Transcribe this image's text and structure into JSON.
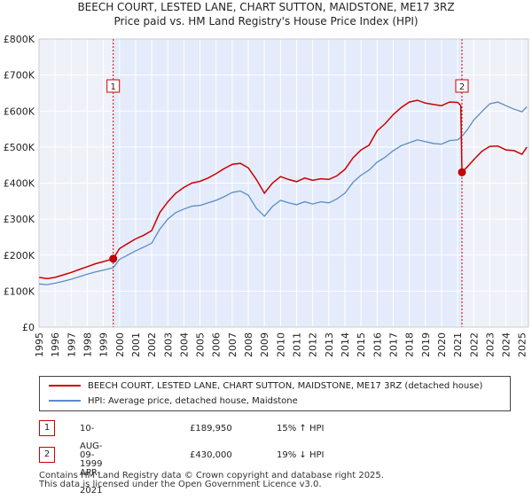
{
  "header": {
    "title": "BEECH COURT, LESTED LANE, CHART SUTTON, MAIDSTONE, ME17 3RZ",
    "subtitle": "Price paid vs. HM Land Registry's House Price Index (HPI)"
  },
  "chart_data": {
    "type": "line",
    "title": "BEECH COURT, LESTED LANE, CHART SUTTON, MAIDSTONE, ME17 3RZ",
    "subtitle": "Price paid vs. HM Land Registry's House Price Index (HPI)",
    "xlabel": "",
    "ylabel": "",
    "xlim": [
      1995,
      2025.4
    ],
    "ylim": [
      0,
      800000
    ],
    "grid": true,
    "x_ticks": [
      1995,
      1996,
      1997,
      1998,
      1999,
      2000,
      2001,
      2002,
      2003,
      2004,
      2005,
      2006,
      2007,
      2008,
      2009,
      2010,
      2011,
      2012,
      2013,
      2014,
      2015,
      2016,
      2017,
      2018,
      2019,
      2020,
      2021,
      2022,
      2023,
      2024,
      2025
    ],
    "y_ticks": [
      0,
      100000,
      200000,
      300000,
      400000,
      500000,
      600000,
      700000,
      800000
    ],
    "y_tick_labels": [
      "£0",
      "£100K",
      "£200K",
      "£300K",
      "£400K",
      "£500K",
      "£600K",
      "£700K",
      "£800K"
    ],
    "shaded_range": [
      1999.61,
      2021.27
    ],
    "series": [
      {
        "name": "BEECH COURT, LESTED LANE, CHART SUTTON, MAIDSTONE, ME17 3RZ (detached house)",
        "color": "#cc0000",
        "x": [
          1995.0,
          1995.5,
          1996.0,
          1996.5,
          1997.0,
          1997.5,
          1998.0,
          1998.5,
          1999.0,
          1999.61,
          2000.0,
          2000.5,
          2001.0,
          2001.5,
          2002.0,
          2002.5,
          2003.0,
          2003.5,
          2004.0,
          2004.5,
          2005.0,
          2005.5,
          2006.0,
          2006.5,
          2007.0,
          2007.5,
          2008.0,
          2008.5,
          2009.0,
          2009.5,
          2010.0,
          2010.5,
          2011.0,
          2011.5,
          2012.0,
          2012.5,
          2013.0,
          2013.5,
          2014.0,
          2014.5,
          2015.0,
          2015.5,
          2016.0,
          2016.5,
          2017.0,
          2017.5,
          2018.0,
          2018.5,
          2019.0,
          2019.5,
          2020.0,
          2020.5,
          2021.0,
          2021.2,
          2021.27,
          2021.6,
          2022.0,
          2022.5,
          2023.0,
          2023.5,
          2024.0,
          2024.5,
          2025.0,
          2025.3
        ],
        "values": [
          138000,
          135000,
          138000,
          145000,
          152000,
          160000,
          168000,
          176000,
          182000,
          189950,
          218000,
          232000,
          245000,
          255000,
          268000,
          318000,
          348000,
          372000,
          388000,
          400000,
          405000,
          414000,
          426000,
          440000,
          452000,
          455000,
          442000,
          410000,
          372000,
          400000,
          418000,
          410000,
          404000,
          414000,
          408000,
          412000,
          410000,
          420000,
          438000,
          470000,
          492000,
          505000,
          545000,
          565000,
          590000,
          610000,
          625000,
          630000,
          622000,
          618000,
          615000,
          625000,
          624000,
          615000,
          430000,
          445000,
          465000,
          488000,
          502000,
          503000,
          492000,
          490000,
          480000,
          500000
        ]
      },
      {
        "name": "HPI: Average price, detached house, Maidstone",
        "color": "#5b8cc8",
        "x": [
          1995.0,
          1995.5,
          1996.0,
          1996.5,
          1997.0,
          1997.5,
          1998.0,
          1998.5,
          1999.0,
          1999.61,
          2000.0,
          2000.5,
          2001.0,
          2001.5,
          2002.0,
          2002.5,
          2003.0,
          2003.5,
          2004.0,
          2004.5,
          2005.0,
          2005.5,
          2006.0,
          2006.5,
          2007.0,
          2007.5,
          2008.0,
          2008.5,
          2009.0,
          2009.5,
          2010.0,
          2010.5,
          2011.0,
          2011.5,
          2012.0,
          2012.5,
          2013.0,
          2013.5,
          2014.0,
          2014.5,
          2015.0,
          2015.5,
          2016.0,
          2016.5,
          2017.0,
          2017.5,
          2018.0,
          2018.5,
          2019.0,
          2019.5,
          2020.0,
          2020.5,
          2021.0,
          2021.27,
          2021.6,
          2022.0,
          2022.5,
          2023.0,
          2023.5,
          2024.0,
          2024.5,
          2025.0,
          2025.3
        ],
        "values": [
          120000,
          118000,
          122000,
          127000,
          133000,
          140000,
          147000,
          153000,
          158000,
          165000,
          188000,
          200000,
          212000,
          222000,
          233000,
          272000,
          300000,
          318000,
          328000,
          336000,
          338000,
          345000,
          352000,
          362000,
          374000,
          378000,
          366000,
          330000,
          308000,
          335000,
          352000,
          345000,
          340000,
          348000,
          342000,
          348000,
          345000,
          356000,
          372000,
          402000,
          422000,
          436000,
          458000,
          472000,
          490000,
          504000,
          512000,
          520000,
          515000,
          510000,
          508000,
          518000,
          520000,
          530000,
          548000,
          575000,
          598000,
          620000,
          625000,
          615000,
          605000,
          598000,
          612000
        ]
      }
    ],
    "transactions": [
      {
        "id": "1",
        "x": 1999.61,
        "value": 189950
      },
      {
        "id": "2",
        "x": 2021.27,
        "value": 430000
      }
    ]
  },
  "legend": {
    "items": [
      {
        "label": "BEECH COURT, LESTED LANE, CHART SUTTON, MAIDSTONE, ME17 3RZ (detached house)",
        "color": "#cc0000"
      },
      {
        "label": "HPI: Average price, detached house, Maidstone",
        "color": "#5b8cc8"
      }
    ]
  },
  "transactions_table": [
    {
      "id": "1",
      "date": "10-AUG-1999",
      "price": "£189,950",
      "hpi": "15% ↑ HPI"
    },
    {
      "id": "2",
      "date": "09-APR-2021",
      "price": "£430,000",
      "hpi": "19% ↓ HPI"
    }
  ],
  "footer": {
    "line1": "Contains HM Land Registry data © Crown copyright and database right 2025.",
    "line2": "This data is licensed under the Open Government Licence v3.0."
  }
}
